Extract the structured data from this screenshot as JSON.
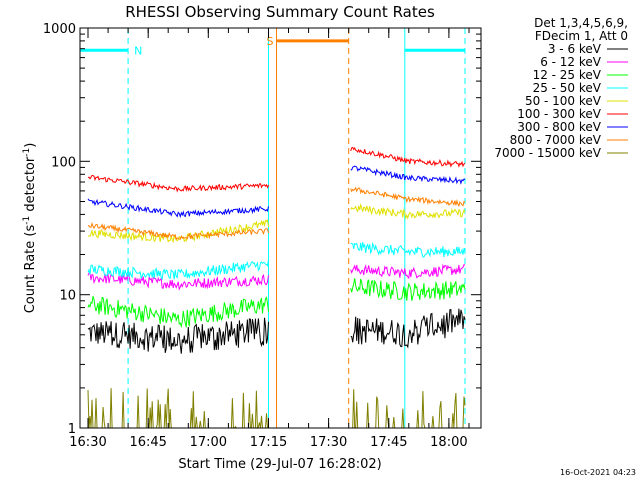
{
  "chart_data": {
    "type": "line",
    "title": "RHESSI Observing Summary Count Rates",
    "xlabel": "Start Time (29-Jul-07 16:28:02)",
    "ylabel_parts": [
      "Count Rate (s",
      "-1",
      " detector",
      "-1",
      ")"
    ],
    "yscale": "log",
    "ylim": [
      1,
      1000
    ],
    "xlim_minutes_after_1628": [
      0,
      100
    ],
    "x_ticks": [
      {
        "label": "16:30",
        "t": 2
      },
      {
        "label": "16:45",
        "t": 17
      },
      {
        "label": "17:00",
        "t": 32
      },
      {
        "label": "17:15",
        "t": 47
      },
      {
        "label": "17:30",
        "t": 62
      },
      {
        "label": "17:45",
        "t": 77
      },
      {
        "label": "18:00",
        "t": 92
      }
    ],
    "y_ticks": [
      {
        "label": "1",
        "v": 1
      },
      {
        "label": "10",
        "v": 10
      },
      {
        "label": "100",
        "v": 100
      },
      {
        "label": "1000",
        "v": 1000
      }
    ],
    "legend": {
      "header": [
        "Det 1,3,4,5,6,9,",
        "FDecim 1, Att 0"
      ],
      "position": "top-right"
    },
    "series": [
      {
        "name": "3 - 6 keV",
        "color": "#000000",
        "segments": [
          {
            "t0": 2,
            "t1": 47,
            "start": 5.2,
            "mid": 4.6,
            "end": 5.4,
            "noise": 0.1,
            "spikes": true
          },
          {
            "t0": 67.5,
            "t1": 96,
            "start": 5.5,
            "mid": 5.2,
            "end": 6.5,
            "noise": 0.1,
            "spikes": true
          }
        ]
      },
      {
        "name": "6 - 12 keV",
        "color": "#ff00ff",
        "segments": [
          {
            "t0": 2,
            "t1": 47,
            "start": 13.5,
            "mid": 12,
            "end": 13,
            "noise": 0.04
          },
          {
            "t0": 67.5,
            "t1": 96,
            "start": 15.5,
            "mid": 14.5,
            "end": 15.5,
            "noise": 0.04
          }
        ]
      },
      {
        "name": "12 - 25 keV",
        "color": "#00ff00",
        "segments": [
          {
            "t0": 2,
            "t1": 47,
            "start": 8.5,
            "mid": 6.5,
            "end": 8.5,
            "noise": 0.07
          },
          {
            "t0": 67.5,
            "t1": 96,
            "start": 11.5,
            "mid": 10.5,
            "end": 11,
            "noise": 0.07
          }
        ]
      },
      {
        "name": "25 - 50 keV",
        "color": "#00ffff",
        "segments": [
          {
            "t0": 2,
            "t1": 47,
            "start": 15.5,
            "mid": 14,
            "end": 17,
            "noise": 0.04
          },
          {
            "t0": 67.5,
            "t1": 96,
            "start": 23,
            "mid": 21,
            "end": 21,
            "noise": 0.04
          }
        ]
      },
      {
        "name": "50 - 100 keV",
        "color": "#e0e000",
        "segments": [
          {
            "t0": 2,
            "t1": 47,
            "start": 29,
            "mid": 26,
            "end": 34,
            "noise": 0.03
          },
          {
            "t0": 67.5,
            "t1": 96,
            "start": 45,
            "mid": 40,
            "end": 41,
            "noise": 0.03
          }
        ]
      },
      {
        "name": "100 - 300 keV",
        "color": "#ff0000",
        "segments": [
          {
            "t0": 2,
            "t1": 47,
            "start": 76,
            "mid": 62,
            "end": 66,
            "noise": 0.02
          },
          {
            "t0": 67.5,
            "t1": 96,
            "start": 125,
            "mid": 100,
            "end": 95,
            "noise": 0.02
          }
        ]
      },
      {
        "name": "300 - 800 keV",
        "color": "#0000ff",
        "segments": [
          {
            "t0": 2,
            "t1": 47,
            "start": 50,
            "mid": 40,
            "end": 44,
            "noise": 0.02
          },
          {
            "t0": 67.5,
            "t1": 96,
            "start": 90,
            "mid": 75,
            "end": 71,
            "noise": 0.02
          }
        ]
      },
      {
        "name": "800 - 7000 keV",
        "color": "#ff8000",
        "segments": [
          {
            "t0": 2,
            "t1": 47,
            "start": 33,
            "mid": 27,
            "end": 30,
            "noise": 0.02
          },
          {
            "t0": 67.5,
            "t1": 96,
            "start": 62,
            "mid": 52,
            "end": 48,
            "noise": 0.02
          }
        ]
      },
      {
        "name": "7000 - 15000 keV",
        "color": "#808000",
        "segments": [
          {
            "t0": 2,
            "t1": 47,
            "start": 1,
            "mid": 1,
            "end": 1,
            "noise": 0,
            "bursty": true
          },
          {
            "t0": 67.5,
            "t1": 96,
            "start": 1,
            "mid": 1,
            "end": 1,
            "noise": 0,
            "bursty": true
          }
        ]
      }
    ],
    "markers": [
      {
        "t": 0,
        "color": "#00ffff",
        "style": "solid"
      },
      {
        "t": 12,
        "color": "#00ffff",
        "style": "dashed"
      },
      {
        "t": 47,
        "color": "#00ffff",
        "style": "solid"
      },
      {
        "t": 49,
        "color": "#ff8000",
        "style": "solid"
      },
      {
        "t": 67,
        "color": "#ff8000",
        "style": "dashed"
      },
      {
        "t": 81,
        "color": "#00ffff",
        "style": "solid"
      },
      {
        "t": 96,
        "color": "#00ffff",
        "style": "dashed"
      }
    ],
    "bars": [
      {
        "label": "N",
        "t0": 0,
        "t1": 12,
        "v": 680,
        "color": "#00ffff"
      },
      {
        "label": "S",
        "t0": 49,
        "t1": 67,
        "v": 800,
        "color": "#ff8000"
      },
      {
        "label": "",
        "t0": 81,
        "t1": 96,
        "v": 680,
        "color": "#00ffff"
      }
    ]
  },
  "footer": {
    "timestamp": "16-Oct-2021 04:23"
  }
}
